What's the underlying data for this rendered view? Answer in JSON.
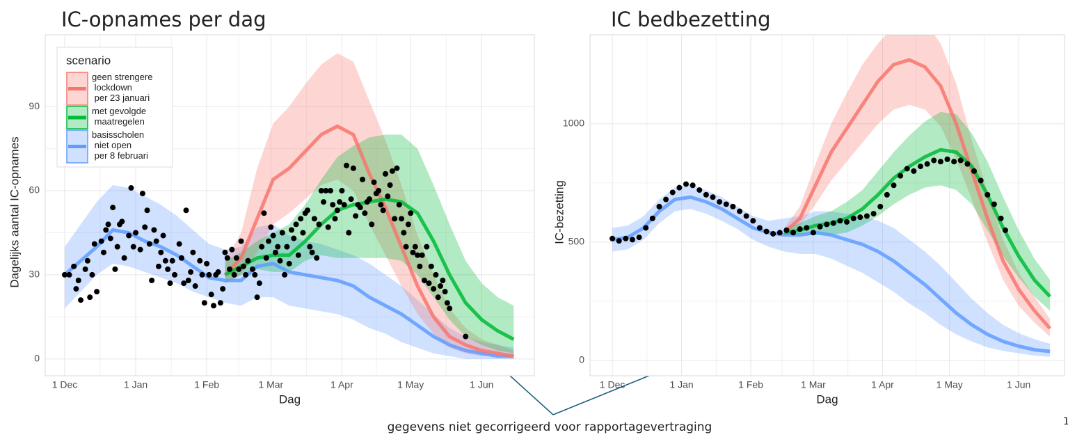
{
  "chart_data": [
    {
      "type": "line",
      "title": "IC-opnames per dag",
      "x_label": "Dag",
      "y_label": "Dagelijks aantal IC-opnames",
      "legend": "top-left",
      "legend_title": "scenario",
      "grid": true,
      "xlim": [
        -8.5,
        205
      ],
      "ylim": [
        -6,
        115.6
      ],
      "xticks": [
        {
          "value": 0,
          "label": "1 Dec"
        },
        {
          "value": 31,
          "label": "1 Jan"
        },
        {
          "value": 62,
          "label": "1 Feb"
        },
        {
          "value": 90,
          "label": "1 Mar"
        },
        {
          "value": 121,
          "label": "1 Apr"
        },
        {
          "value": 151,
          "label": "1 May"
        },
        {
          "value": 182,
          "label": "1 Jun"
        }
      ],
      "yticks": [
        0,
        30,
        60,
        90
      ],
      "x": [
        0,
        7,
        14,
        21,
        28,
        35,
        42,
        49,
        56,
        63,
        70,
        77,
        84,
        91,
        98,
        105,
        112,
        119,
        126,
        133,
        140,
        147,
        154,
        161,
        168,
        175,
        182,
        189,
        196
      ],
      "series": [
        {
          "name": "geen strengere\n lockdown\n per 23 januari",
          "color": "#f8766d",
          "values": [
            null,
            null,
            null,
            null,
            null,
            null,
            null,
            null,
            null,
            null,
            30,
            36,
            50,
            64,
            68,
            74,
            80,
            83,
            80,
            66,
            54,
            40,
            26,
            15,
            8,
            5,
            3,
            2,
            1
          ],
          "lower": [
            null,
            null,
            null,
            null,
            null,
            null,
            null,
            null,
            null,
            null,
            27,
            30,
            38,
            48,
            52,
            57,
            62,
            64,
            60,
            48,
            37,
            26,
            16,
            9,
            4,
            2,
            1,
            1,
            0
          ],
          "upper": [
            null,
            null,
            null,
            null,
            null,
            null,
            null,
            null,
            null,
            null,
            35,
            45,
            68,
            84,
            90,
            98,
            105,
            109,
            106,
            92,
            78,
            62,
            44,
            30,
            18,
            11,
            7,
            5,
            3
          ]
        },
        {
          "name": "met gevolgde\n maatregelen",
          "color": "#00ba38",
          "values": [
            null,
            null,
            null,
            null,
            null,
            null,
            null,
            null,
            null,
            null,
            30,
            33,
            36,
            37,
            37,
            42,
            48,
            53,
            55,
            56,
            57,
            56,
            52,
            42,
            30,
            20,
            14,
            10,
            7
          ],
          "lower": [
            null,
            null,
            null,
            null,
            null,
            null,
            null,
            null,
            null,
            null,
            27,
            30,
            32,
            31,
            31,
            35,
            37,
            36,
            36,
            36,
            36,
            35,
            30,
            22,
            14,
            8,
            5,
            3,
            2
          ],
          "upper": [
            null,
            null,
            null,
            null,
            null,
            null,
            null,
            null,
            null,
            null,
            35,
            38,
            42,
            45,
            48,
            55,
            64,
            72,
            76,
            79,
            80,
            80,
            75,
            62,
            48,
            35,
            27,
            22,
            19
          ]
        },
        {
          "name": "basisscholen\n niet open\n per 8 februari",
          "color": "#619cff",
          "values": [
            30,
            35,
            40,
            46,
            45,
            42,
            40,
            37,
            33,
            29,
            28,
            28,
            33,
            34,
            31,
            30,
            29,
            28,
            26,
            22,
            19,
            16,
            12,
            8,
            5,
            3,
            2,
            1,
            1
          ],
          "lower": [
            18,
            24,
            30,
            34,
            33,
            31,
            29,
            27,
            24,
            22,
            20,
            19,
            22,
            22,
            19,
            18,
            17,
            16,
            14,
            11,
            9,
            6,
            4,
            2,
            1,
            0,
            0,
            0,
            0
          ],
          "upper": [
            40,
            48,
            56,
            62,
            61,
            58,
            55,
            51,
            46,
            41,
            39,
            40,
            47,
            48,
            44,
            42,
            41,
            39,
            37,
            34,
            30,
            26,
            21,
            16,
            11,
            8,
            6,
            5,
            4
          ]
        }
      ],
      "observed": {
        "color": "#000000",
        "x": [
          0,
          2,
          4,
          5,
          6,
          7,
          9,
          10,
          11,
          12,
          13,
          14,
          16,
          17,
          18,
          19,
          20,
          21,
          22,
          23,
          24,
          25,
          26,
          28,
          29,
          30,
          31,
          33,
          34,
          35,
          36,
          37,
          38,
          39,
          40,
          41,
          42,
          43,
          44,
          45,
          46,
          47,
          48,
          50,
          51,
          52,
          53,
          54,
          55,
          56,
          57,
          59,
          60,
          61,
          62,
          63,
          64,
          65,
          66,
          67,
          68,
          69,
          70,
          71,
          72,
          73,
          74,
          75,
          76,
          77,
          78,
          79,
          80,
          82,
          83,
          84,
          85,
          86,
          87,
          88,
          89,
          90,
          91,
          92,
          93,
          94,
          95,
          96,
          97,
          98,
          99,
          100,
          101,
          102,
          103,
          104,
          105,
          106,
          107,
          108,
          109,
          110,
          111,
          112,
          113,
          114,
          115,
          116,
          117,
          118,
          119,
          120,
          121,
          122,
          123,
          124,
          125,
          126,
          127,
          128,
          129,
          130,
          131,
          132,
          133,
          134,
          135,
          136,
          137,
          138,
          139,
          140,
          141,
          142,
          143,
          144,
          145,
          146,
          147,
          148,
          149,
          150,
          151,
          152,
          153,
          154,
          155,
          156,
          157,
          158,
          159,
          160,
          161,
          162,
          163,
          164,
          165,
          166,
          167,
          168,
          175
        ],
        "values": [
          30,
          30,
          33,
          25,
          28,
          21,
          32,
          35,
          22,
          30,
          41,
          24,
          42,
          38,
          46,
          48,
          43,
          54,
          32,
          40,
          48,
          49,
          36,
          44,
          61,
          40,
          45,
          39,
          59,
          47,
          53,
          41,
          28,
          46,
          42,
          33,
          38,
          44,
          35,
          32,
          27,
          35,
          30,
          41,
          36,
          27,
          53,
          28,
          31,
          38,
          26,
          35,
          30,
          20,
          34,
          30,
          23,
          19,
          30,
          31,
          20,
          25,
          38,
          36,
          32,
          39,
          30,
          36,
          32,
          42,
          33,
          30,
          35,
          32,
          30,
          22,
          27,
          40,
          52,
          36,
          42,
          47,
          44,
          38,
          40,
          35,
          45,
          30,
          40,
          34,
          46,
          43,
          48,
          37,
          50,
          45,
          52,
          53,
          40,
          38,
          50,
          36,
          48,
          60,
          56,
          60,
          47,
          60,
          55,
          50,
          53,
          56,
          60,
          55,
          69,
          45,
          57,
          68,
          51,
          55,
          54,
          64,
          52,
          56,
          57,
          48,
          63,
          59,
          60,
          55,
          53,
          66,
          58,
          62,
          67,
          50,
          68,
          55,
          50,
          45,
          40,
          48,
          52,
          38,
          40,
          37,
          33,
          37,
          28,
          40,
          27,
          33,
          25,
          30,
          22,
          26,
          28,
          24,
          20,
          18,
          8
        ]
      }
    },
    {
      "type": "line",
      "title": "IC bedbezetting",
      "x_label": "Dag",
      "y_label": "IC-bezetting",
      "grid": true,
      "xlim": [
        -10,
        202.5
      ],
      "ylim": [
        -65,
        1376
      ],
      "xticks": [
        {
          "value": 0,
          "label": "1 Dec"
        },
        {
          "value": 31,
          "label": "1 Jan"
        },
        {
          "value": 62,
          "label": "1 Feb"
        },
        {
          "value": 90,
          "label": "1 Mar"
        },
        {
          "value": 121,
          "label": "1 Apr"
        },
        {
          "value": 151,
          "label": "1 May"
        },
        {
          "value": 182,
          "label": "1 Jun"
        }
      ],
      "yticks": [
        0,
        500,
        1000
      ],
      "x": [
        0,
        7,
        14,
        21,
        28,
        35,
        42,
        49,
        56,
        63,
        70,
        77,
        84,
        91,
        98,
        105,
        112,
        119,
        126,
        133,
        140,
        147,
        154,
        161,
        168,
        175,
        182,
        189,
        196
      ],
      "series": [
        {
          "color": "#f8766d",
          "values": [
            null,
            null,
            null,
            null,
            null,
            null,
            null,
            null,
            null,
            null,
            null,
            540,
            600,
            740,
            880,
            980,
            1080,
            1180,
            1250,
            1270,
            1240,
            1160,
            1000,
            800,
            600,
            420,
            300,
            210,
            135
          ],
          "lower": [
            null,
            null,
            null,
            null,
            null,
            null,
            null,
            null,
            null,
            null,
            null,
            530,
            570,
            660,
            760,
            840,
            920,
            1000,
            1060,
            1080,
            1060,
            990,
            850,
            680,
            500,
            340,
            230,
            160,
            100
          ],
          "upper": [
            null,
            null,
            null,
            null,
            null,
            null,
            null,
            null,
            null,
            null,
            null,
            560,
            650,
            830,
            1000,
            1130,
            1250,
            1340,
            1410,
            1440,
            1430,
            1340,
            1170,
            930,
            710,
            510,
            370,
            270,
            175
          ]
        },
        {
          "color": "#00ba38",
          "values": [
            null,
            null,
            null,
            null,
            null,
            null,
            null,
            null,
            null,
            null,
            null,
            540,
            550,
            570,
            580,
            600,
            640,
            700,
            770,
            820,
            860,
            890,
            880,
            820,
            700,
            560,
            440,
            340,
            270
          ],
          "lower": [
            null,
            null,
            null,
            null,
            null,
            null,
            null,
            null,
            null,
            null,
            null,
            530,
            530,
            530,
            530,
            540,
            570,
            610,
            660,
            700,
            730,
            740,
            720,
            660,
            550,
            440,
            350,
            270,
            210
          ],
          "upper": [
            null,
            null,
            null,
            null,
            null,
            null,
            null,
            null,
            null,
            null,
            null,
            560,
            580,
            610,
            630,
            670,
            720,
            800,
            880,
            950,
            1010,
            1050,
            1040,
            960,
            840,
            690,
            550,
            430,
            340
          ]
        },
        {
          "color": "#619cff",
          "values": [
            510,
            520,
            560,
            630,
            680,
            690,
            670,
            640,
            600,
            560,
            540,
            530,
            530,
            540,
            530,
            510,
            490,
            460,
            420,
            370,
            320,
            260,
            200,
            150,
            110,
            80,
            60,
            45,
            38
          ],
          "lower": [
            460,
            470,
            510,
            580,
            630,
            640,
            620,
            590,
            555,
            510,
            480,
            460,
            450,
            450,
            430,
            400,
            370,
            330,
            290,
            240,
            200,
            150,
            110,
            80,
            55,
            40,
            30,
            20,
            15
          ],
          "upper": [
            560,
            570,
            610,
            680,
            730,
            745,
            720,
            690,
            650,
            610,
            590,
            600,
            610,
            630,
            630,
            620,
            610,
            590,
            560,
            510,
            460,
            400,
            330,
            260,
            200,
            150,
            115,
            90,
            70
          ]
        }
      ],
      "observed": {
        "color": "#000000",
        "x": [
          0,
          3,
          6,
          9,
          12,
          15,
          18,
          21,
          24,
          27,
          30,
          33,
          36,
          39,
          42,
          45,
          48,
          51,
          54,
          57,
          60,
          63,
          66,
          69,
          72,
          75,
          78,
          81,
          84,
          87,
          90,
          93,
          96,
          99,
          102,
          105,
          108,
          111,
          114,
          117,
          120,
          123,
          126,
          129,
          132,
          135,
          138,
          141,
          144,
          147,
          150,
          153,
          156,
          159,
          162,
          165,
          168,
          171,
          174,
          176
        ],
        "values": [
          515,
          505,
          515,
          510,
          520,
          560,
          600,
          650,
          680,
          710,
          730,
          745,
          740,
          720,
          700,
          690,
          670,
          660,
          650,
          630,
          610,
          590,
          560,
          545,
          535,
          540,
          550,
          540,
          555,
          560,
          540,
          565,
          575,
          580,
          590,
          585,
          600,
          605,
          610,
          620,
          650,
          700,
          740,
          780,
          810,
          800,
          820,
          830,
          845,
          840,
          850,
          840,
          845,
          830,
          800,
          760,
          700,
          660,
          600,
          550
        ]
      }
    }
  ],
  "annotation": "gegevens niet gecorrigeerd voor rapportagevertraging",
  "page_number": "1"
}
